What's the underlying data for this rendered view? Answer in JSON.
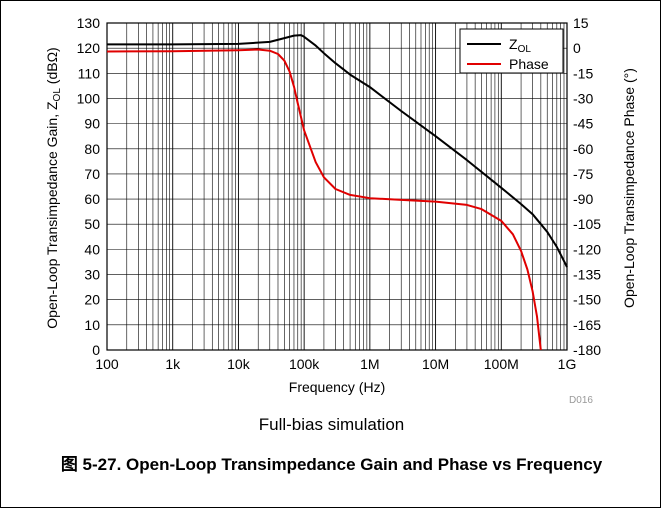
{
  "figure": {
    "caption": "Full-bias simulation",
    "title": "图 5-27. Open-Loop Transimpedance Gain and Phase vs Frequency",
    "code": "D016"
  },
  "chart_data": {
    "type": "line",
    "xlabel": "Frequency (Hz)",
    "ylabel_left": "Open-Loop Transimpedance Gain, Z",
    "ylabel_left_sub": "OL",
    "ylabel_left_unit": " (dBΩ)",
    "ylabel_right": "Open-Loop Transimpedance Phase (°)",
    "x_scale": "log",
    "xlim": [
      100,
      1000000000
    ],
    "x_ticks": [
      {
        "value": 100,
        "label": "100"
      },
      {
        "value": 1000,
        "label": "1k"
      },
      {
        "value": 10000,
        "label": "10k"
      },
      {
        "value": 100000,
        "label": "100k"
      },
      {
        "value": 1000000,
        "label": "1M"
      },
      {
        "value": 10000000,
        "label": "10M"
      },
      {
        "value": 100000000,
        "label": "100M"
      },
      {
        "value": 1000000000,
        "label": "1G"
      }
    ],
    "ylim_left": [
      0,
      130
    ],
    "y_ticks_left": [
      0,
      10,
      20,
      30,
      40,
      50,
      60,
      70,
      80,
      90,
      100,
      110,
      120,
      130
    ],
    "ylim_right": [
      -180,
      15
    ],
    "y_ticks_right": [
      15,
      0,
      -15,
      -30,
      -45,
      -60,
      -75,
      -90,
      -105,
      -120,
      -135,
      -150,
      -165,
      -180
    ],
    "grid": true,
    "legend_position": "top-right",
    "series": [
      {
        "name": "Z",
        "name_sub": "OL",
        "axis": "left",
        "color": "#000000",
        "x": [
          100,
          1000,
          10000,
          30000,
          50000,
          70000,
          90000,
          100000,
          150000,
          200000,
          300000,
          500000,
          1000000,
          3000000,
          10000000,
          30000000,
          100000000,
          200000000,
          300000000,
          500000000,
          700000000,
          1000000000
        ],
        "y": [
          121.5,
          121.5,
          121.7,
          122.5,
          124,
          125,
          125.2,
          124.5,
          121,
          118,
          114,
          109.5,
          104.5,
          95,
          85,
          75.5,
          64.5,
          58,
          54,
          47,
          41,
          33
        ]
      },
      {
        "name": "Phase",
        "axis": "right",
        "color": "#e00000",
        "x": [
          100,
          1000,
          10000,
          20000,
          30000,
          40000,
          50000,
          60000,
          70000,
          80000,
          100000,
          150000,
          200000,
          300000,
          500000,
          1000000,
          3000000,
          10000000,
          30000000,
          50000000,
          100000000,
          150000000,
          200000000,
          250000000,
          300000000,
          350000000,
          400000000
        ],
        "y": [
          -2,
          -1.8,
          -1.2,
          -0.8,
          -1.5,
          -3.5,
          -7.5,
          -14,
          -23,
          -33,
          -49,
          -68,
          -77,
          -84,
          -87.5,
          -89.5,
          -90.5,
          -91.5,
          -93.5,
          -96,
          -103,
          -111,
          -121,
          -132,
          -145,
          -160,
          -180
        ]
      }
    ]
  }
}
